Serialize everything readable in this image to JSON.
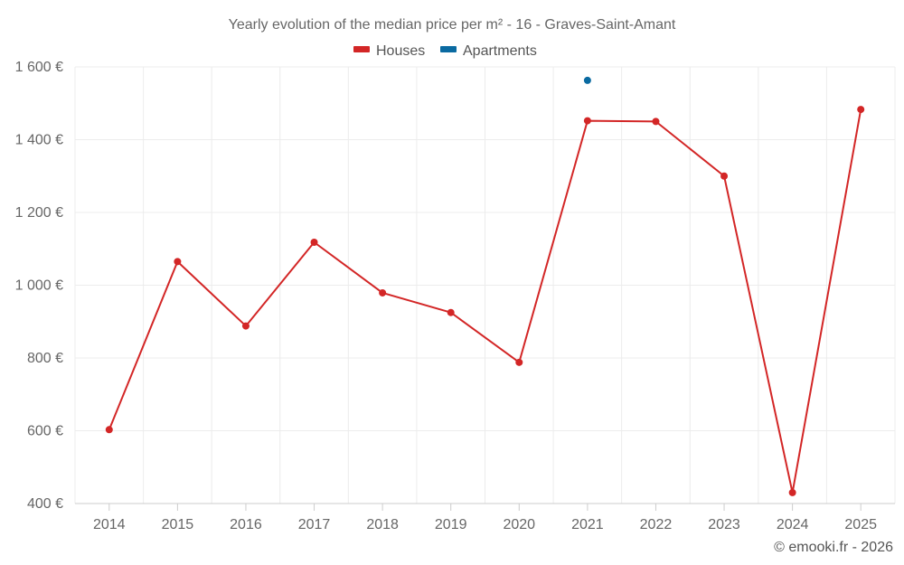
{
  "chart_data": {
    "type": "line",
    "title": "Yearly evolution of the median price per m² - 16 - Graves-Saint-Amant",
    "xlabel": "",
    "ylabel": "",
    "categories": [
      "2014",
      "2015",
      "2016",
      "2017",
      "2018",
      "2019",
      "2020",
      "2021",
      "2022",
      "2023",
      "2024",
      "2025"
    ],
    "ylim": [
      400,
      1600
    ],
    "yticks": [
      400,
      600,
      800,
      1000,
      1200,
      1400,
      1600
    ],
    "ytick_labels": [
      "400 €",
      "600 €",
      "800 €",
      "1 000 €",
      "1 200 €",
      "1 400 €",
      "1 600 €"
    ],
    "grid": true,
    "legend_position": "top-center",
    "series": [
      {
        "name": "Houses",
        "color": "#d32626",
        "values": [
          603,
          1065,
          888,
          1118,
          979,
          925,
          788,
          1452,
          1450,
          1300,
          430,
          1483
        ]
      },
      {
        "name": "Apartments",
        "color": "#0a6aa1",
        "values": [
          null,
          null,
          null,
          null,
          null,
          null,
          null,
          1563,
          null,
          null,
          null,
          null
        ]
      }
    ]
  },
  "credit": "© emooki.fr - 2026"
}
